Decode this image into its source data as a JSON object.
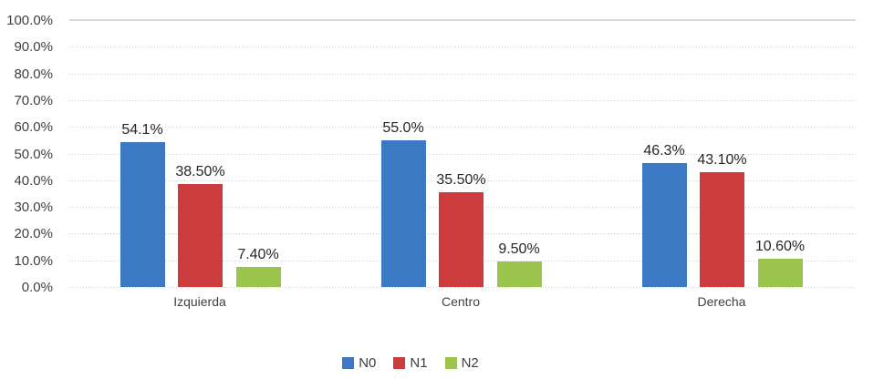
{
  "chart_data": {
    "type": "bar",
    "title": "",
    "xlabel": "",
    "ylabel": "",
    "categories": [
      "Izquierda",
      "Centro",
      "Derecha"
    ],
    "series": [
      {
        "name": "N0",
        "color": "#3c79c5",
        "values": [
          54.1,
          55.0,
          46.3
        ],
        "labels": [
          "54.1%",
          "55.0%",
          "46.3%"
        ]
      },
      {
        "name": "N1",
        "color": "#cc3c3c",
        "values": [
          38.5,
          35.5,
          43.1
        ],
        "labels": [
          "38.50%",
          "35.50%",
          "43.10%"
        ]
      },
      {
        "name": "N2",
        "color": "#9cc54e",
        "values": [
          7.4,
          9.5,
          10.6
        ],
        "labels": [
          "7.40%",
          "9.50%",
          "10.60%"
        ]
      }
    ],
    "y_axis": {
      "min": 0,
      "max": 100,
      "step": 10,
      "tick_labels": [
        "100.0%",
        "90.0%",
        "80.0%",
        "70.0%",
        "60.0%",
        "50.0%",
        "40.0%",
        "30.0%",
        "20.0%",
        "10.0%",
        "0.0%"
      ]
    },
    "grid": true,
    "legend_position": "bottom-center"
  },
  "styles": {
    "background": "#ffffff",
    "gridline_dotted_color": "#cfcfcf",
    "gridline_solid_color": "#d9d9d9",
    "axis_label_color": "#404040",
    "data_label_color": "#262626",
    "legend_label_color": "#404040"
  }
}
